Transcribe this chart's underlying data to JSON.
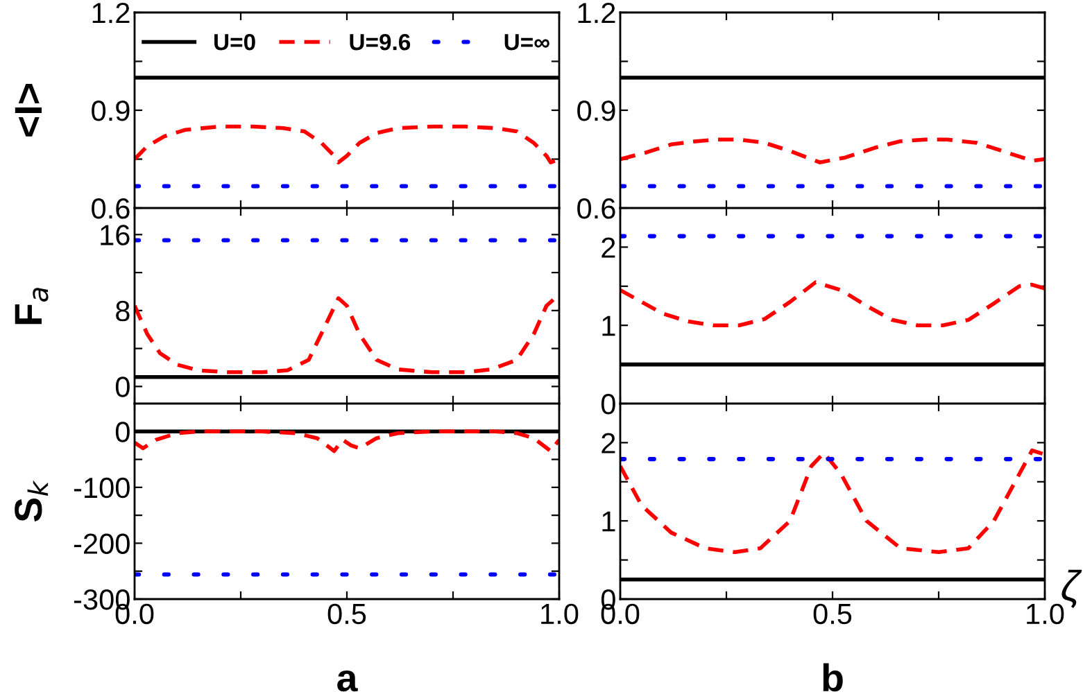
{
  "chart_data": [
    {
      "type": "line",
      "ylabel": "<I>",
      "xlim": [
        0,
        1
      ],
      "ylim": [
        0.6,
        1.2
      ],
      "tick_labels": "y",
      "legend": "top",
      "xticks": [
        {
          "value": 0,
          "label": null
        },
        {
          "value": 0.25,
          "label": null
        },
        {
          "value": 0.5,
          "label": null
        },
        {
          "value": 0.75,
          "label": null
        },
        {
          "value": 1,
          "label": null
        }
      ],
      "yticks": [
        0.6,
        {
          "value": 0.75,
          "label": null
        },
        0.9,
        {
          "value": 1.05,
          "label": null
        },
        1.2
      ],
      "series": [
        {
          "name": "U=0",
          "color": "#000000",
          "line_style": "solid",
          "x": [
            0,
            1
          ],
          "values": [
            1.0,
            1.0
          ]
        },
        {
          "name": "U=9.6",
          "color": "#ff0000",
          "line_style": "dashed",
          "x": [
            0,
            0.03,
            0.07,
            0.12,
            0.2,
            0.28,
            0.35,
            0.4,
            0.44,
            0.47,
            0.48,
            0.5,
            0.53,
            0.57,
            0.62,
            0.7,
            0.78,
            0.85,
            0.9,
            0.94,
            0.97,
            0.98,
            1.0
          ],
          "values": [
            0.75,
            0.79,
            0.82,
            0.84,
            0.85,
            0.85,
            0.845,
            0.835,
            0.8,
            0.76,
            0.74,
            0.76,
            0.8,
            0.83,
            0.845,
            0.85,
            0.85,
            0.845,
            0.835,
            0.8,
            0.76,
            0.74,
            0.75
          ]
        },
        {
          "name": "U=∞",
          "color": "#0000ff",
          "line_style": "dotted",
          "x": [
            0,
            1
          ],
          "values": [
            0.667,
            0.667
          ]
        }
      ]
    },
    {
      "type": "line",
      "xlim": [
        0,
        1
      ],
      "ylim": [
        0.6,
        1.2
      ],
      "tick_labels": "y",
      "xticks": [
        {
          "value": 0,
          "label": null
        },
        {
          "value": 0.25,
          "label": null
        },
        {
          "value": 0.5,
          "label": null
        },
        {
          "value": 0.75,
          "label": null
        },
        {
          "value": 1,
          "label": null
        }
      ],
      "yticks": [
        0.6,
        {
          "value": 0.75,
          "label": null
        },
        0.9,
        {
          "value": 1.05,
          "label": null
        },
        1.2
      ],
      "series": [
        {
          "color": "#000000",
          "line_style": "solid",
          "x": [
            0,
            1
          ],
          "values": [
            1.0,
            1.0
          ]
        },
        {
          "color": "#ff0000",
          "line_style": "dashed",
          "x": [
            0,
            0.06,
            0.12,
            0.18,
            0.23,
            0.28,
            0.34,
            0.4,
            0.47,
            0.53,
            0.6,
            0.66,
            0.72,
            0.77,
            0.84,
            0.9,
            0.97,
            1.0
          ],
          "values": [
            0.75,
            0.77,
            0.795,
            0.805,
            0.81,
            0.81,
            0.8,
            0.775,
            0.74,
            0.755,
            0.785,
            0.805,
            0.81,
            0.81,
            0.8,
            0.775,
            0.745,
            0.75
          ]
        },
        {
          "color": "#0000ff",
          "line_style": "dotted",
          "x": [
            0,
            1
          ],
          "values": [
            0.667,
            0.667
          ]
        }
      ]
    },
    {
      "type": "line",
      "ylabel": "F$_{a}$",
      "xlim": [
        0,
        1
      ],
      "ylim": [
        -1.8,
        18.8
      ],
      "tick_labels": "y",
      "xticks": [
        {
          "value": 0,
          "label": null
        },
        {
          "value": 0.25,
          "label": null
        },
        {
          "value": 0.5,
          "label": null
        },
        {
          "value": 0.75,
          "label": null
        },
        {
          "value": 1,
          "label": null
        }
      ],
      "yticks": [
        0,
        {
          "value": 4,
          "label": null
        },
        8,
        {
          "value": 12,
          "label": null
        },
        16
      ],
      "series": [
        {
          "color": "#000000",
          "line_style": "solid",
          "x": [
            0,
            1
          ],
          "values": [
            1,
            1
          ]
        },
        {
          "color": "#ff0000",
          "line_style": "dashed",
          "x": [
            0,
            0.03,
            0.06,
            0.1,
            0.15,
            0.22,
            0.3,
            0.36,
            0.41,
            0.45,
            0.48,
            0.5,
            0.53,
            0.57,
            0.62,
            0.7,
            0.78,
            0.84,
            0.9,
            0.94,
            0.97,
            0.99,
            1.0
          ],
          "values": [
            8.5,
            5.5,
            3.5,
            2.3,
            1.7,
            1.5,
            1.5,
            1.7,
            2.8,
            6.5,
            9.3,
            8.5,
            5.5,
            2.8,
            1.8,
            1.5,
            1.5,
            1.8,
            2.8,
            5.5,
            8.5,
            9.3,
            9.0
          ]
        },
        {
          "color": "#0000ff",
          "line_style": "dotted",
          "x": [
            0,
            1
          ],
          "values": [
            15.4,
            15.4
          ]
        }
      ]
    },
    {
      "type": "line",
      "xlim": [
        0,
        1
      ],
      "ylim": [
        0,
        2.5
      ],
      "tick_labels": "y",
      "xticks": [
        {
          "value": 0,
          "label": null
        },
        {
          "value": 0.25,
          "label": null
        },
        {
          "value": 0.5,
          "label": null
        },
        {
          "value": 0.75,
          "label": null
        },
        {
          "value": 1,
          "label": null
        }
      ],
      "yticks": [
        0,
        {
          "value": 0.5,
          "label": null
        },
        1,
        {
          "value": 1.5,
          "label": null
        },
        2
      ],
      "series": [
        {
          "color": "#000000",
          "line_style": "solid",
          "x": [
            0,
            1
          ],
          "values": [
            0.5,
            0.5
          ]
        },
        {
          "color": "#ff0000",
          "line_style": "dashed",
          "x": [
            0,
            0.05,
            0.1,
            0.16,
            0.22,
            0.28,
            0.34,
            0.4,
            0.46,
            0.52,
            0.58,
            0.64,
            0.7,
            0.76,
            0.82,
            0.88,
            0.94,
            0.97,
            1.0
          ],
          "values": [
            1.45,
            1.3,
            1.15,
            1.05,
            1.0,
            1.0,
            1.08,
            1.3,
            1.55,
            1.45,
            1.25,
            1.07,
            1.0,
            1.0,
            1.07,
            1.28,
            1.5,
            1.52,
            1.47
          ]
        },
        {
          "color": "#0000ff",
          "line_style": "dotted",
          "x": [
            0,
            1
          ],
          "values": [
            2.14,
            2.14
          ]
        }
      ]
    },
    {
      "type": "line",
      "ylabel": "S$_{k}$",
      "xlim": [
        0,
        1
      ],
      "ylim": [
        -300,
        50
      ],
      "annotations": [
        "a"
      ],
      "xticks": [
        {
          "value": 0,
          "label": "0.0"
        },
        {
          "value": 0.25,
          "label": null
        },
        {
          "value": 0.5,
          "label": "0.5"
        },
        {
          "value": 0.75,
          "label": null
        },
        {
          "value": 1,
          "label": "1.0"
        }
      ],
      "yticks": [
        -300,
        {
          "value": -250,
          "label": null
        },
        -200,
        {
          "value": -150,
          "label": null
        },
        -100,
        {
          "value": -50,
          "label": null
        },
        0
      ],
      "series": [
        {
          "color": "#000000",
          "line_style": "solid",
          "x": [
            0,
            1
          ],
          "values": [
            0,
            0
          ]
        },
        {
          "color": "#ff0000",
          "line_style": "dashed",
          "x": [
            0,
            0.02,
            0.05,
            0.1,
            0.15,
            0.3,
            0.38,
            0.43,
            0.47,
            0.49,
            0.51,
            0.53,
            0.57,
            0.62,
            0.7,
            0.85,
            0.9,
            0.94,
            0.98,
            1.0
          ],
          "values": [
            -20,
            -30,
            -15,
            -3,
            0,
            0,
            -3,
            -12,
            -35,
            -15,
            -25,
            -30,
            -12,
            -3,
            0,
            0,
            -3,
            -12,
            -35,
            -15
          ]
        },
        {
          "color": "#0000ff",
          "line_style": "dotted",
          "x": [
            0,
            1
          ],
          "values": [
            -256,
            -256
          ]
        }
      ]
    },
    {
      "type": "line",
      "xlabel": "ζ",
      "xlim": [
        0,
        1
      ],
      "ylim": [
        0,
        2.5
      ],
      "annotations": [
        "b"
      ],
      "xticks": [
        {
          "value": 0,
          "label": "0.0"
        },
        {
          "value": 0.25,
          "label": null
        },
        {
          "value": 0.5,
          "label": "0.5"
        },
        {
          "value": 0.75,
          "label": null
        },
        {
          "value": 1,
          "label": "1.0"
        }
      ],
      "yticks": [
        0,
        {
          "value": 0.5,
          "label": null
        },
        1,
        {
          "value": 1.5,
          "label": null
        },
        2
      ],
      "series": [
        {
          "color": "#000000",
          "line_style": "solid",
          "x": [
            0,
            1
          ],
          "values": [
            0.25,
            0.25
          ]
        },
        {
          "color": "#ff0000",
          "line_style": "dashed",
          "x": [
            0,
            0.05,
            0.12,
            0.2,
            0.27,
            0.33,
            0.4,
            0.45,
            0.48,
            0.52,
            0.58,
            0.66,
            0.75,
            0.82,
            0.88,
            0.94,
            0.97,
            1.0
          ],
          "values": [
            1.7,
            1.2,
            0.85,
            0.65,
            0.6,
            0.65,
            1.0,
            1.7,
            1.87,
            1.6,
            1.0,
            0.65,
            0.6,
            0.65,
            1.0,
            1.6,
            1.9,
            1.85
          ]
        },
        {
          "color": "#0000ff",
          "line_style": "dotted",
          "x": [
            0,
            1
          ],
          "values": [
            1.79,
            1.79
          ]
        }
      ]
    }
  ]
}
